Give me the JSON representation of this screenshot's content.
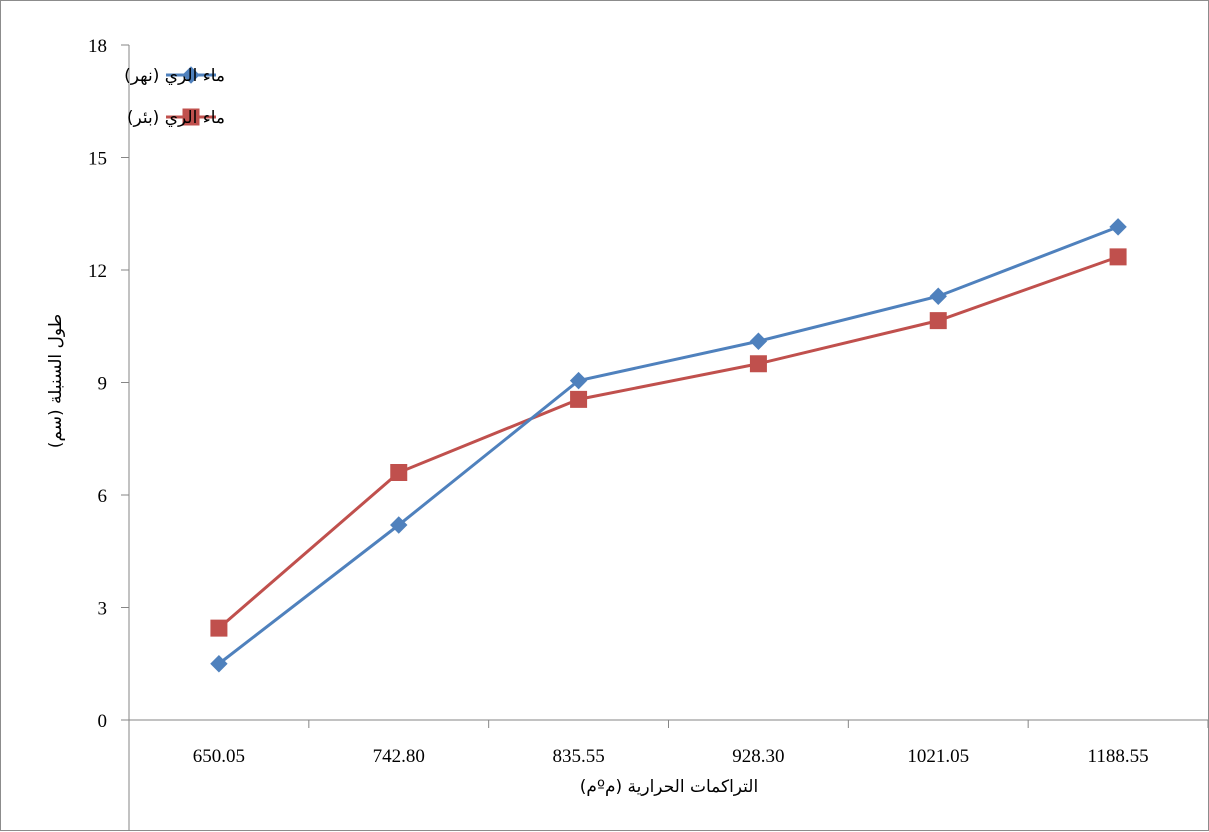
{
  "chart_data": {
    "type": "line",
    "title": "",
    "xlabel": "التراكمات الحرارية (مºم)",
    "ylabel": "طول السنبلة (سم)",
    "categories": [
      "650.05",
      "742.80",
      "835.55",
      "928.30",
      "1021.05",
      "1188.55"
    ],
    "ylim": [
      0,
      18
    ],
    "yticks": [
      "0",
      "3",
      "6",
      "9",
      "12",
      "15",
      "18"
    ],
    "grid": false,
    "legend_position": "top-left",
    "series": [
      {
        "name": "ماء الري (نهر)",
        "values": [
          1.5,
          5.2,
          9.05,
          10.1,
          11.3,
          13.15
        ],
        "color": "#4f81bd",
        "marker": "diamond"
      },
      {
        "name": "ماء الري (بئر)",
        "values": [
          2.45,
          6.6,
          8.55,
          9.5,
          10.65,
          12.35
        ],
        "color": "#c0504d",
        "marker": "square"
      }
    ]
  }
}
